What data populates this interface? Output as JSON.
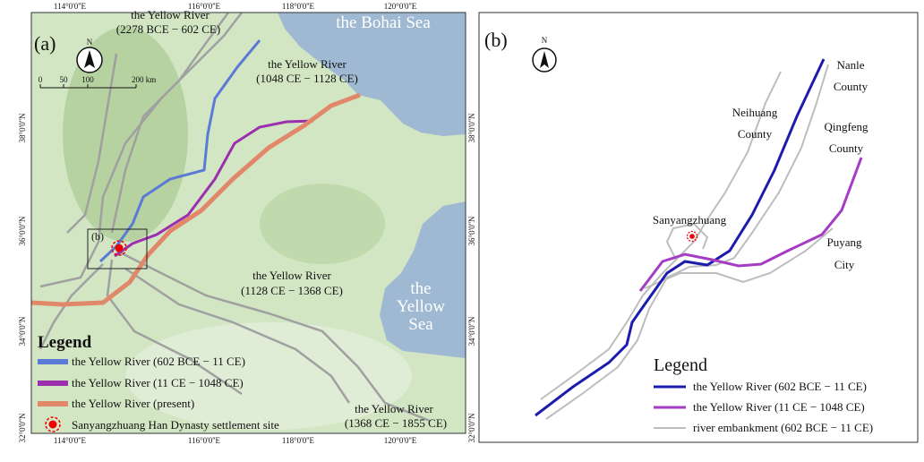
{
  "panel_a": {
    "label": "(a)",
    "north": "N",
    "lon_labels": [
      "114°0'0''E",
      "116°0'0''E",
      "118°0'0''E",
      "120°0'0''E"
    ],
    "lat_labels": [
      "38°0'0''N",
      "36°0'0''N",
      "34°0'0''N",
      "32°0'0''N"
    ],
    "scale_labels": [
      "0",
      "50",
      "100",
      "200 km"
    ],
    "bohai": "the Bohai Sea",
    "yellow_sea": [
      "the",
      "Yellow",
      "Sea"
    ],
    "rivers": [
      {
        "name": "the Yellow River",
        "period": "(2278 BCE − 602 CE)"
      },
      {
        "name": "the Yellow River",
        "period": "(1048 CE − 1128 CE)"
      },
      {
        "name": "the Yellow River",
        "period": "(1128 CE − 1368 CE)"
      },
      {
        "name": "the Yellow River",
        "period": "(1368 CE − 1855 CE)"
      }
    ],
    "inset_label": "(b)",
    "legend": {
      "title": "Legend",
      "items": [
        "the Yellow River (602 BCE − 11 CE)",
        "the Yellow River (11 CE − 1048 CE)",
        "the Yellow River (present)",
        "Sanyangzhuang Han Dynasty settlement site"
      ]
    }
  },
  "panel_b": {
    "label": "(b)",
    "north": "N",
    "places": [
      [
        "Nanle",
        "County"
      ],
      [
        "Neihuang",
        "County"
      ],
      [
        "Qingfeng",
        "County"
      ],
      [
        "Sanyangzhuang"
      ],
      [
        "Puyang",
        "City"
      ]
    ],
    "legend": {
      "title": "Legend",
      "items": [
        "the Yellow River (602 BCE − 11 CE)",
        "the Yellow River (11 CE − 1048 CE)",
        "river embankment (602 BCE − 11 CE)"
      ]
    }
  }
}
